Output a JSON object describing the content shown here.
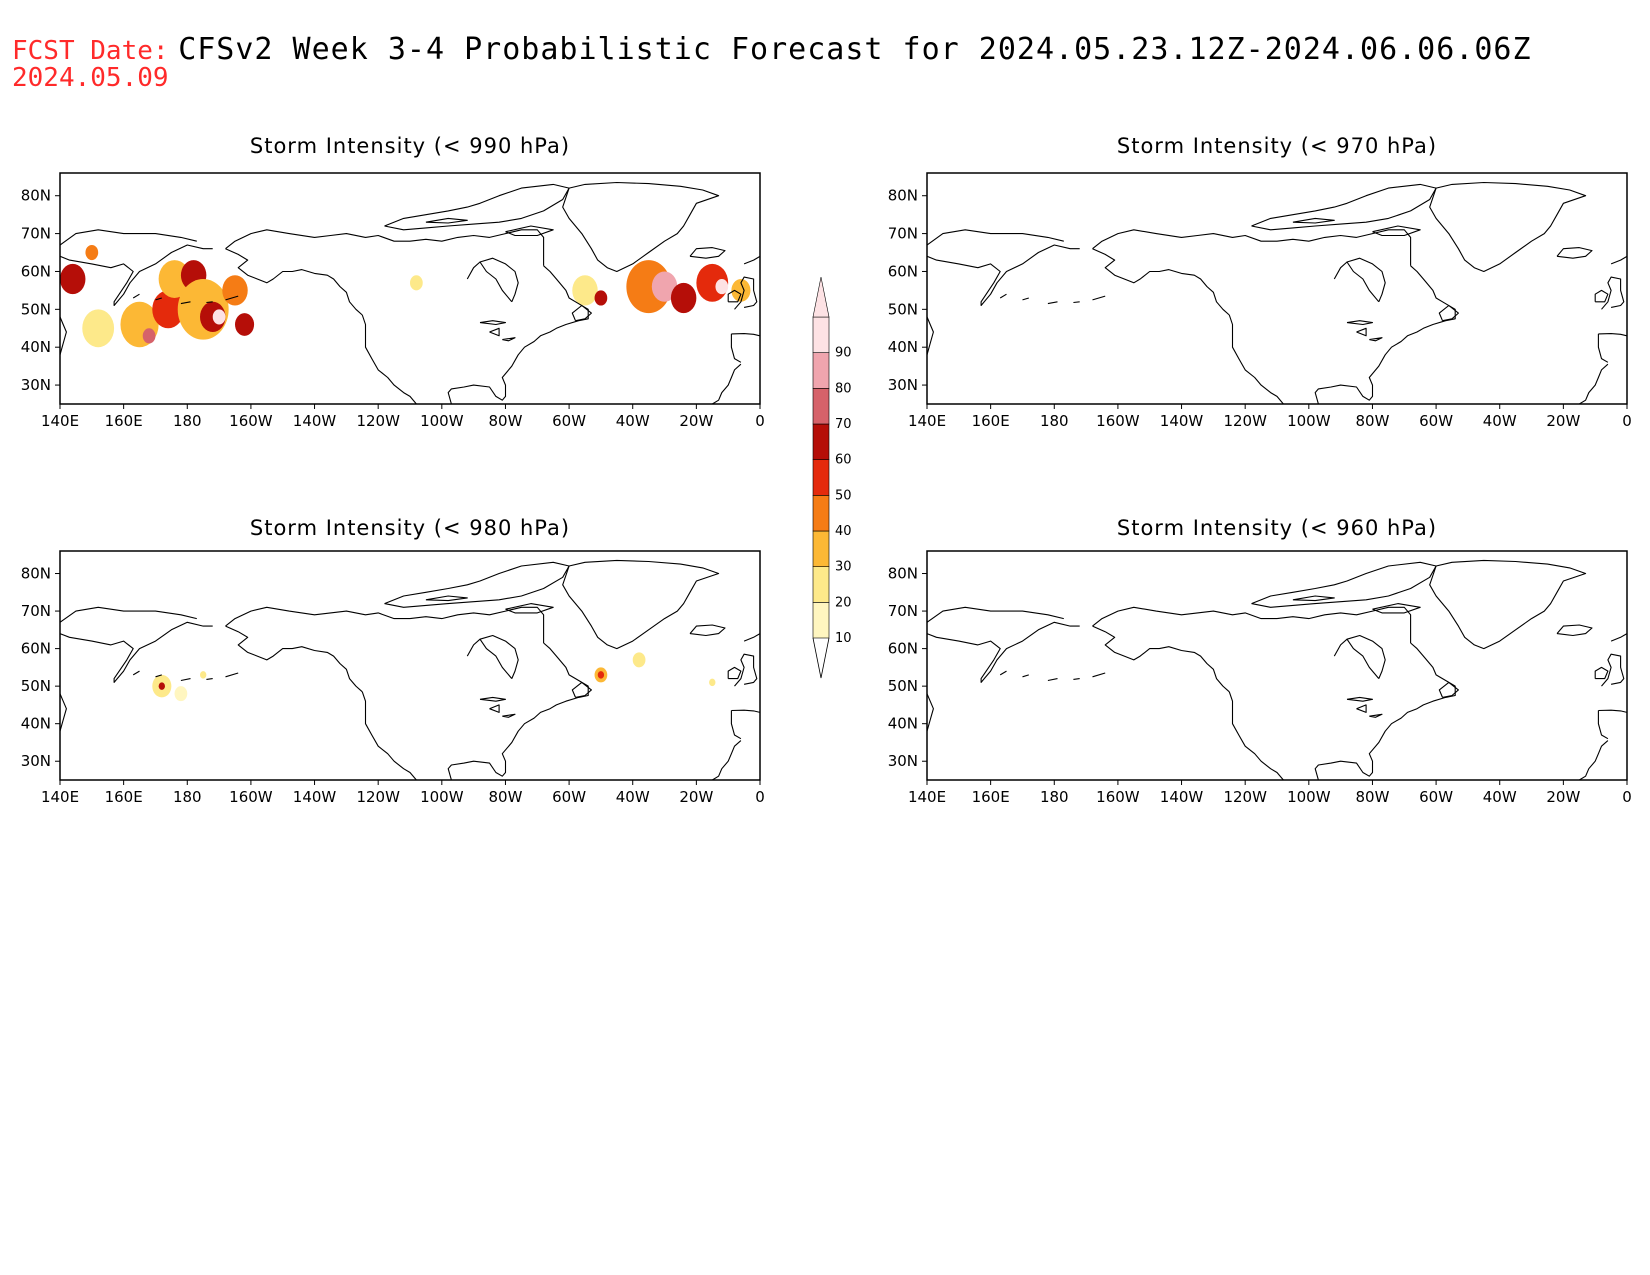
{
  "header": {
    "fcst_label": "FCST Date:",
    "title": "CFSv2 Week 3-4 Probabilistic Forecast for 2024.05.23.12Z-2024.06.06.06Z",
    "fcst_date": "2024.05.09"
  },
  "colors": {
    "label_red": "#ff2a2a",
    "scale": [
      "#fff6c0",
      "#fde98a",
      "#fcb835",
      "#f57c15",
      "#e42a0c",
      "#b50e08",
      "#d6626a",
      "#f0a5ae",
      "#fde2e4"
    ]
  },
  "lat_ticks": [
    "80N",
    "70N",
    "60N",
    "50N",
    "40N",
    "30N"
  ],
  "lon_ticks": [
    "140E",
    "160E",
    "180",
    "160W",
    "140W",
    "120W",
    "100W",
    "80W",
    "60W",
    "40W",
    "20W",
    "0"
  ],
  "colorbar": {
    "levels": [
      "10",
      "20",
      "30",
      "40",
      "50",
      "60",
      "70",
      "80",
      "90"
    ]
  },
  "panels": [
    {
      "title": "Storm Intensity (< 990 hPa)",
      "blobs": [
        {
          "lon": 144,
          "lat": 58,
          "r": 4,
          "level": 5
        },
        {
          "lon": 150,
          "lat": 65,
          "r": 2,
          "level": 3
        },
        {
          "lon": 152,
          "lat": 45,
          "r": 5,
          "level": 1
        },
        {
          "lon": 165,
          "lat": 46,
          "r": 6,
          "level": 2
        },
        {
          "lon": 168,
          "lat": 43,
          "r": 2,
          "level": 6
        },
        {
          "lon": 174,
          "lat": 50,
          "r": 5,
          "level": 4
        },
        {
          "lon": 176,
          "lat": 58,
          "r": 5,
          "level": 2
        },
        {
          "lon": 182,
          "lat": 59,
          "r": 4,
          "level": 5
        },
        {
          "lon": 185,
          "lat": 50,
          "r": 8,
          "level": 2
        },
        {
          "lon": 188,
          "lat": 48,
          "r": 4,
          "level": 5
        },
        {
          "lon": 190,
          "lat": 48,
          "r": 2,
          "level": 8
        },
        {
          "lon": 195,
          "lat": 55,
          "r": 4,
          "level": 3
        },
        {
          "lon": 198,
          "lat": 46,
          "r": 3,
          "level": 5
        },
        {
          "lon": 252,
          "lat": 57,
          "r": 2,
          "level": 1
        },
        {
          "lon": 305,
          "lat": 55,
          "r": 4,
          "level": 1
        },
        {
          "lon": 310,
          "lat": 53,
          "r": 2,
          "level": 5
        },
        {
          "lon": 325,
          "lat": 56,
          "r": 7,
          "level": 3
        },
        {
          "lon": 330,
          "lat": 56,
          "r": 4,
          "level": 7
        },
        {
          "lon": 336,
          "lat": 53,
          "r": 4,
          "level": 5
        },
        {
          "lon": 345,
          "lat": 57,
          "r": 5,
          "level": 4
        },
        {
          "lon": 348,
          "lat": 56,
          "r": 2,
          "level": 8
        },
        {
          "lon": 354,
          "lat": 55,
          "r": 3,
          "level": 2
        }
      ]
    },
    {
      "title": "Storm Intensity (< 970 hPa)",
      "blobs": []
    },
    {
      "title": "Storm Intensity (< 980 hPa)",
      "blobs": [
        {
          "lon": 172,
          "lat": 50,
          "r": 3,
          "level": 1
        },
        {
          "lon": 172,
          "lat": 50,
          "r": 1,
          "level": 5
        },
        {
          "lon": 178,
          "lat": 48,
          "r": 2,
          "level": 0
        },
        {
          "lon": 185,
          "lat": 53,
          "r": 1,
          "level": 1
        },
        {
          "lon": 310,
          "lat": 53,
          "r": 2,
          "level": 2
        },
        {
          "lon": 310,
          "lat": 53,
          "r": 1,
          "level": 4
        },
        {
          "lon": 322,
          "lat": 57,
          "r": 2,
          "level": 1
        },
        {
          "lon": 345,
          "lat": 51,
          "r": 1,
          "level": 1
        }
      ]
    },
    {
      "title": "Storm Intensity (< 960 hPa)",
      "blobs": []
    }
  ]
}
